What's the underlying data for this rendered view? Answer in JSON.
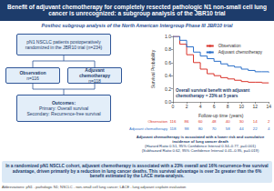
{
  "header": {
    "title": "Benefit of adjuvant chemotherapy for completely resected pathologic N1 non-small cell lung cancer is unrecognized: a subgroup analysis of the JBR10 trial",
    "subtitle": "Posthoc subgroup analysis of the North American Intergroup Phase III JBR10 trial"
  },
  "flow": {
    "population": "pN1 NSCLC patients postoperatively randomized in the JBR10 trial (n=234)",
    "arms": [
      {
        "label": "Observation",
        "n": "n=116"
      },
      {
        "label": "Adjuvant chemotherapy",
        "n": "n=118"
      }
    ],
    "outcomes": {
      "title": "Outcomes:",
      "lines": [
        "Primary: Overall survival",
        "Secondary: Recurrence-free survival"
      ]
    }
  },
  "chart_data": {
    "type": "line",
    "x_label": "Follow-up time (years)",
    "y_label": "Survival Probability",
    "annotation": "Overall survival benefit with adjuvant chemotherapy = 23% at 5 years",
    "series": [
      {
        "name": "Observation",
        "color": "#d9342b",
        "line_style": "step",
        "x": [
          0,
          1,
          2,
          3,
          4,
          5,
          6,
          7,
          8,
          9,
          10,
          11,
          12,
          13,
          14
        ],
        "values": [
          1.0,
          0.88,
          0.72,
          0.6,
          0.5,
          0.43,
          0.4,
          0.37,
          0.35,
          0.33,
          0.31,
          0.3,
          0.3,
          0.29,
          0.29
        ]
      },
      {
        "name": "Adjuvant chemotherapy",
        "color": "#2a6fc9",
        "line_style": "step",
        "x": [
          0,
          1,
          2,
          3,
          4,
          5,
          6,
          7,
          8,
          9,
          10,
          11,
          12,
          13,
          14
        ],
        "values": [
          1.0,
          0.94,
          0.84,
          0.76,
          0.7,
          0.66,
          0.62,
          0.58,
          0.55,
          0.53,
          0.5,
          0.48,
          0.46,
          0.46,
          0.45
        ]
      }
    ],
    "xlim": [
      0,
      14
    ],
    "xticks": [
      0,
      2,
      4,
      6,
      8,
      10,
      12,
      14
    ],
    "ylim": [
      0,
      1
    ],
    "yticks": [
      {
        "value": 0,
        "label": "0.0"
      },
      0.2,
      0.4,
      0.6,
      0.8,
      {
        "value": 1,
        "label": "1.0"
      }
    ],
    "grid": false,
    "legend": "upper right",
    "at_risk": [
      {
        "name": "Observation",
        "values": [
          116,
          86,
          60,
          48,
          40,
          30,
          14,
          2
        ]
      },
      {
        "name": "Adjuvant chemotherapy",
        "values": [
          118,
          98,
          80,
          70,
          58,
          44,
          22,
          4
        ]
      }
    ]
  },
  "findings": {
    "text": "Adjuvant chemotherapy is associated with a lower risk and cumulative incidence of lung cancer death",
    "statistics": [
      "(Hazard Ratio 0.51, 95% Confidence Interval 0.34–0.77, p=0.001)",
      "(Subhazard Ratio 0.62, 95% Confidence Interval 0.41–0.95, p=0.019)"
    ]
  },
  "conclusion": "In a randomized pN1 NSCLC cohort, adjuvant chemotherapy is associated with a 23% overall and 16% recurrence-free survival advantage, driven primarily by a reduction in lung cancer deaths. This survival advantage is over 3x greater than the 6% benefit estimated by the LACE meta-analysis.",
  "abbreviations": "Abbreviations: pN1 - pathologic N1; NSCLC - non-small cell lung cancer; LACE - lung adjuvant cisplatin evaluation"
}
